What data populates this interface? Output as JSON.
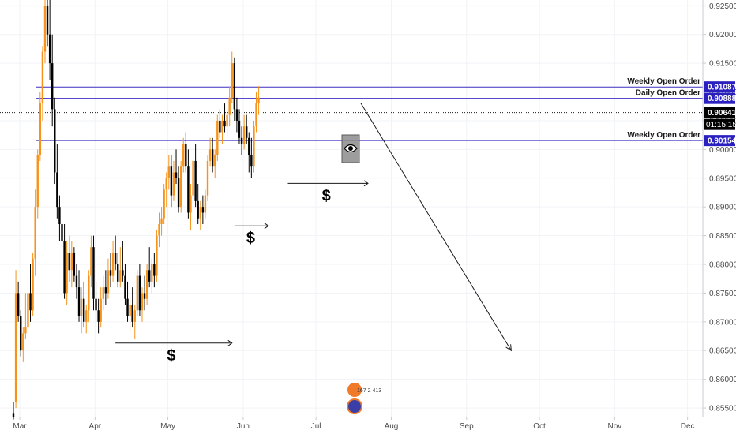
{
  "chart_data": {
    "type": "candlestick",
    "timeframe": "daily",
    "ylim": [
      0.8535,
      0.926
    ],
    "y_ticks": [
      "0.92500",
      "0.92000",
      "0.91500",
      "0.91000",
      "0.90500",
      "0.90000",
      "0.89500",
      "0.89000",
      "0.88500",
      "0.88000",
      "0.87500",
      "0.87000",
      "0.86500",
      "0.86000",
      "0.85500"
    ],
    "x_ticks": [
      "Mar",
      "Apr",
      "May",
      "Jun",
      "Jul",
      "Aug",
      "Sep",
      "Oct",
      "Nov",
      "Dec"
    ],
    "x_tick_days": [
      0,
      31,
      61,
      92,
      122,
      153,
      184,
      214,
      245,
      275
    ],
    "current_price": "0.90641",
    "countdown": "01:15:15",
    "levels": [
      {
        "label": "Weekly Open Order",
        "price": 0.91087,
        "price_label": "0.91087"
      },
      {
        "label": "Daily Open Order",
        "price": 0.90888,
        "price_label": "0.90888"
      },
      {
        "label": "Weekly Open Order",
        "price": 0.90154,
        "price_label": "0.90154"
      }
    ],
    "liquidity_marks": [
      {
        "label": "$",
        "day_start": 42,
        "day_end": 90,
        "price": 0.8663
      },
      {
        "label": "$",
        "day_start": 91,
        "day_end": 105,
        "price": 0.8867
      },
      {
        "label": "$",
        "day_start": 113,
        "day_end": 146,
        "price": 0.8941
      }
    ],
    "projection": {
      "from_day": 143,
      "from_price": 0.9081,
      "to_day": 205,
      "to_price": 0.865
    },
    "candles": [
      [
        0,
        0.854,
        0.856,
        0.853,
        0.8535
      ],
      [
        1,
        0.856,
        0.879,
        0.855,
        0.875
      ],
      [
        2,
        0.875,
        0.877,
        0.87,
        0.871
      ],
      [
        3,
        0.871,
        0.872,
        0.864,
        0.865
      ],
      [
        4,
        0.865,
        0.869,
        0.863,
        0.868
      ],
      [
        5,
        0.868,
        0.875,
        0.867,
        0.869
      ],
      [
        6,
        0.869,
        0.878,
        0.868,
        0.875
      ],
      [
        7,
        0.875,
        0.88,
        0.87,
        0.872
      ],
      [
        8,
        0.872,
        0.882,
        0.871,
        0.881
      ],
      [
        9,
        0.881,
        0.893,
        0.878,
        0.89
      ],
      [
        10,
        0.89,
        0.9,
        0.888,
        0.899
      ],
      [
        11,
        0.899,
        0.91,
        0.898,
        0.908
      ],
      [
        12,
        0.908,
        0.918,
        0.905,
        0.917
      ],
      [
        13,
        0.917,
        0.926,
        0.915,
        0.925
      ],
      [
        14,
        0.925,
        0.929,
        0.918,
        0.92
      ],
      [
        15,
        0.92,
        0.928,
        0.912,
        0.915
      ],
      [
        16,
        0.915,
        0.92,
        0.904,
        0.907
      ],
      [
        17,
        0.907,
        0.909,
        0.894,
        0.896
      ],
      [
        18,
        0.896,
        0.901,
        0.888,
        0.89
      ],
      [
        19,
        0.89,
        0.892,
        0.884,
        0.887
      ],
      [
        20,
        0.887,
        0.89,
        0.882,
        0.884
      ],
      [
        21,
        0.884,
        0.887,
        0.874,
        0.875
      ],
      [
        22,
        0.875,
        0.884,
        0.873,
        0.882
      ],
      [
        23,
        0.882,
        0.885,
        0.877,
        0.879
      ],
      [
        24,
        0.879,
        0.884,
        0.876,
        0.882
      ],
      [
        25,
        0.882,
        0.883,
        0.877,
        0.878
      ],
      [
        26,
        0.878,
        0.88,
        0.874,
        0.876
      ],
      [
        27,
        0.876,
        0.879,
        0.87,
        0.871
      ],
      [
        28,
        0.871,
        0.876,
        0.868,
        0.874
      ],
      [
        29,
        0.874,
        0.877,
        0.869,
        0.87
      ],
      [
        30,
        0.87,
        0.873,
        0.868,
        0.872
      ],
      [
        31,
        0.872,
        0.879,
        0.87,
        0.878
      ],
      [
        32,
        0.878,
        0.885,
        0.876,
        0.883
      ],
      [
        33,
        0.883,
        0.885,
        0.872,
        0.874
      ],
      [
        34,
        0.874,
        0.877,
        0.87,
        0.872
      ],
      [
        35,
        0.872,
        0.874,
        0.868,
        0.87
      ],
      [
        36,
        0.87,
        0.876,
        0.869,
        0.874
      ],
      [
        37,
        0.874,
        0.878,
        0.872,
        0.876
      ],
      [
        38,
        0.876,
        0.879,
        0.873,
        0.875
      ],
      [
        39,
        0.875,
        0.881,
        0.874,
        0.879
      ],
      [
        40,
        0.879,
        0.882,
        0.876,
        0.878
      ],
      [
        41,
        0.878,
        0.884,
        0.877,
        0.882
      ],
      [
        42,
        0.882,
        0.885,
        0.879,
        0.88
      ],
      [
        43,
        0.88,
        0.882,
        0.876,
        0.877
      ],
      [
        44,
        0.877,
        0.883,
        0.876,
        0.879
      ],
      [
        45,
        0.879,
        0.884,
        0.877,
        0.878
      ],
      [
        46,
        0.878,
        0.88,
        0.873,
        0.874
      ],
      [
        47,
        0.874,
        0.877,
        0.87,
        0.871
      ],
      [
        48,
        0.871,
        0.874,
        0.868,
        0.873
      ],
      [
        49,
        0.873,
        0.876,
        0.869,
        0.87
      ],
      [
        50,
        0.87,
        0.873,
        0.867,
        0.872
      ],
      [
        51,
        0.872,
        0.879,
        0.871,
        0.878
      ],
      [
        52,
        0.878,
        0.88,
        0.871,
        0.872
      ],
      [
        53,
        0.872,
        0.876,
        0.87,
        0.875
      ],
      [
        54,
        0.875,
        0.878,
        0.872,
        0.874
      ],
      [
        55,
        0.874,
        0.88,
        0.873,
        0.879
      ],
      [
        56,
        0.879,
        0.883,
        0.876,
        0.877
      ],
      [
        57,
        0.877,
        0.881,
        0.875,
        0.88
      ],
      [
        58,
        0.88,
        0.882,
        0.876,
        0.878
      ],
      [
        59,
        0.878,
        0.886,
        0.877,
        0.885
      ],
      [
        60,
        0.885,
        0.889,
        0.883,
        0.887
      ],
      [
        61,
        0.887,
        0.89,
        0.885,
        0.888
      ],
      [
        62,
        0.888,
        0.894,
        0.887,
        0.893
      ],
      [
        63,
        0.893,
        0.896,
        0.89,
        0.895
      ],
      [
        64,
        0.895,
        0.899,
        0.893,
        0.897
      ],
      [
        65,
        0.897,
        0.899,
        0.89,
        0.892
      ],
      [
        66,
        0.892,
        0.898,
        0.891,
        0.896
      ],
      [
        67,
        0.896,
        0.9,
        0.894,
        0.895
      ],
      [
        68,
        0.895,
        0.897,
        0.889,
        0.89
      ],
      [
        69,
        0.89,
        0.898,
        0.889,
        0.897
      ],
      [
        70,
        0.897,
        0.902,
        0.896,
        0.901
      ],
      [
        71,
        0.901,
        0.903,
        0.896,
        0.897
      ],
      [
        72,
        0.897,
        0.9,
        0.888,
        0.889
      ],
      [
        73,
        0.889,
        0.894,
        0.886,
        0.892
      ],
      [
        74,
        0.892,
        0.899,
        0.891,
        0.898
      ],
      [
        75,
        0.898,
        0.901,
        0.89,
        0.891
      ],
      [
        76,
        0.891,
        0.894,
        0.887,
        0.888
      ],
      [
        77,
        0.888,
        0.891,
        0.886,
        0.89
      ],
      [
        78,
        0.89,
        0.892,
        0.887,
        0.889
      ],
      [
        79,
        0.889,
        0.893,
        0.888,
        0.892
      ],
      [
        80,
        0.892,
        0.899,
        0.891,
        0.898
      ],
      [
        81,
        0.898,
        0.902,
        0.897,
        0.9
      ],
      [
        82,
        0.9,
        0.902,
        0.896,
        0.897
      ],
      [
        83,
        0.897,
        0.9,
        0.895,
        0.899
      ],
      [
        84,
        0.899,
        0.906,
        0.898,
        0.905
      ],
      [
        85,
        0.905,
        0.907,
        0.902,
        0.903
      ],
      [
        86,
        0.903,
        0.906,
        0.901,
        0.905
      ],
      [
        87,
        0.905,
        0.908,
        0.903,
        0.904
      ],
      [
        88,
        0.904,
        0.907,
        0.902,
        0.906
      ],
      [
        89,
        0.906,
        0.911,
        0.904,
        0.909
      ],
      [
        90,
        0.909,
        0.917,
        0.908,
        0.915
      ],
      [
        91,
        0.915,
        0.916,
        0.905,
        0.907
      ],
      [
        92,
        0.907,
        0.909,
        0.903,
        0.905
      ],
      [
        93,
        0.905,
        0.907,
        0.901,
        0.902
      ],
      [
        94,
        0.902,
        0.904,
        0.899,
        0.901
      ],
      [
        95,
        0.901,
        0.906,
        0.9,
        0.904
      ],
      [
        96,
        0.904,
        0.906,
        0.901,
        0.902
      ],
      [
        97,
        0.902,
        0.903,
        0.896,
        0.899
      ],
      [
        98,
        0.899,
        0.902,
        0.895,
        0.897
      ],
      [
        99,
        0.897,
        0.905,
        0.896,
        0.904
      ],
      [
        100,
        0.904,
        0.91,
        0.903,
        0.908
      ],
      [
        101,
        0.908,
        0.911,
        0.906,
        0.909
      ]
    ]
  },
  "watermark": {
    "text": "167 2 413"
  }
}
